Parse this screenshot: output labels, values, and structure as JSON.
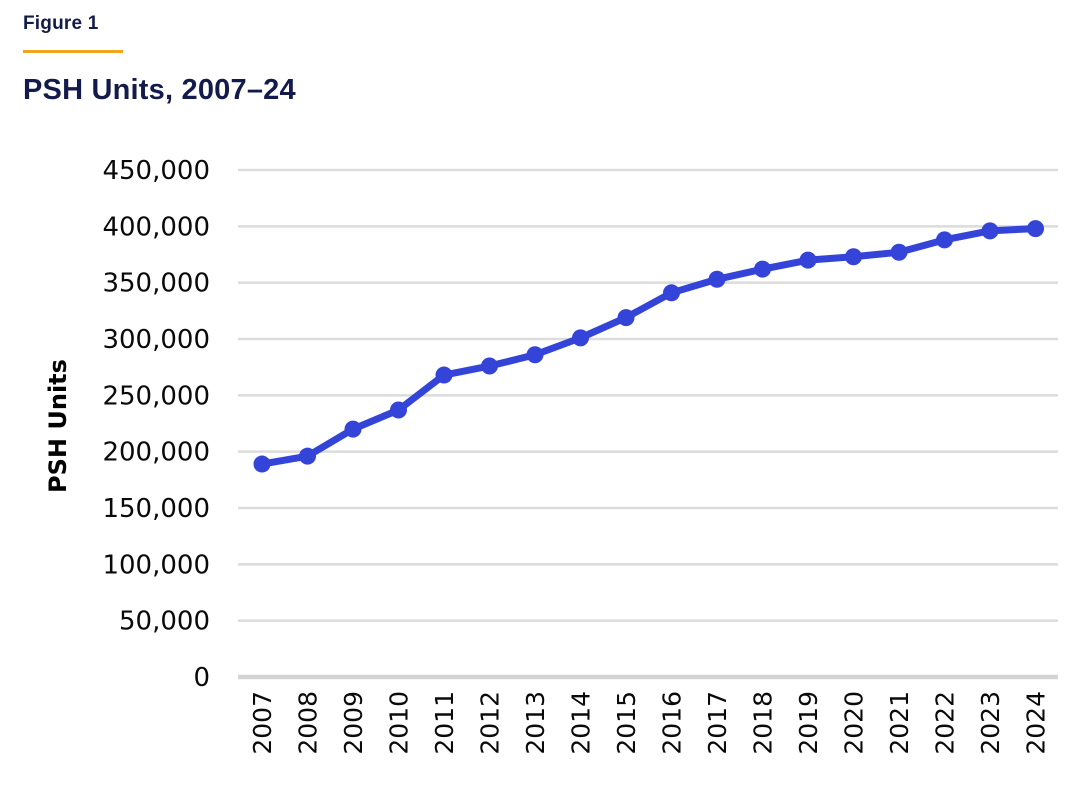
{
  "header": {
    "figure_label": "Figure 1",
    "title": "PSH Units, 2007–24",
    "accent_rule_color": "#f2a41f",
    "title_color": "#131b4d"
  },
  "chart_data": {
    "type": "line",
    "title": "PSH Units, 2007–24",
    "xlabel": "",
    "ylabel": "PSH Units",
    "categories": [
      "2007",
      "2008",
      "2009",
      "2010",
      "2011",
      "2012",
      "2013",
      "2014",
      "2015",
      "2016",
      "2017",
      "2018",
      "2019",
      "2020",
      "2021",
      "2022",
      "2023",
      "2024"
    ],
    "series": [
      {
        "name": "PSH Units",
        "color": "#3443d8",
        "values": [
          189000,
          196000,
          220000,
          237000,
          268000,
          276000,
          286000,
          301000,
          319000,
          341000,
          353000,
          362000,
          370000,
          373000,
          377000,
          388000,
          396000,
          398000
        ]
      }
    ],
    "ylim": [
      0,
      450000
    ],
    "ytick_step": 50000,
    "ytick_labels": [
      "0",
      "50,000",
      "100,000",
      "150,000",
      "200,000",
      "250,000",
      "300,000",
      "350,000",
      "400,000",
      "450,000"
    ],
    "grid": true,
    "gridline_color": "#dcdcdc",
    "axisline_color": "#d4d4d4",
    "legend": "none",
    "marker": "circle"
  }
}
